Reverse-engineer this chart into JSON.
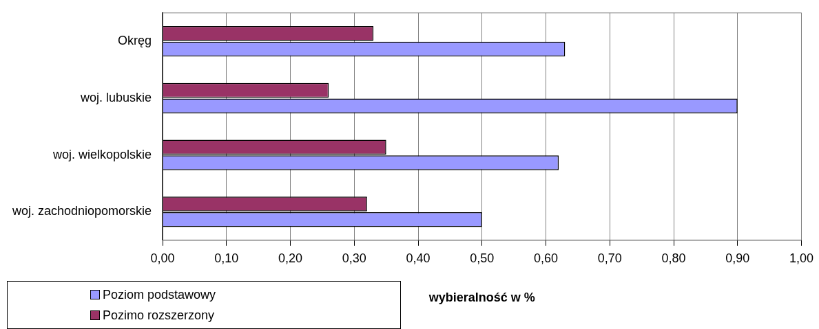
{
  "chart_data": {
    "type": "bar",
    "orientation": "horizontal",
    "xlabel": "wybieralność w %",
    "categories": [
      "Okręg",
      "woj. lubuskie",
      "woj. wielkopolskie",
      "woj. zachodniopomorskie"
    ],
    "series": [
      {
        "name": "Poziom podstawowy",
        "color": "#9999ff",
        "values": [
          0.63,
          0.9,
          0.62,
          0.5
        ]
      },
      {
        "name": "Pozimo rozszerzony",
        "color": "#993366",
        "values": [
          0.33,
          0.26,
          0.35,
          0.32
        ]
      }
    ],
    "xlim": [
      0,
      1
    ],
    "xticks": [
      {
        "value": 0,
        "label": "0,00"
      },
      {
        "value": 0.1,
        "label": "0,10"
      },
      {
        "value": 0.2,
        "label": "0,20"
      },
      {
        "value": 0.3,
        "label": "0,30"
      },
      {
        "value": 0.4,
        "label": "0,40"
      },
      {
        "value": 0.5,
        "label": "0,50"
      },
      {
        "value": 0.6,
        "label": "0,60"
      },
      {
        "value": 0.7,
        "label": "0,70"
      },
      {
        "value": 0.8,
        "label": "0,80"
      },
      {
        "value": 0.9,
        "label": "0,90"
      },
      {
        "value": 1,
        "label": "1,00"
      }
    ],
    "grid": "x",
    "legend": "bottom left"
  }
}
